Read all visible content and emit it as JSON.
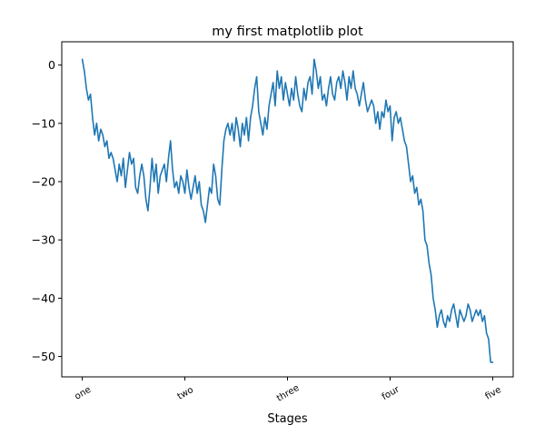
{
  "chart_data": {
    "type": "line",
    "title": "my first matplotlib plot",
    "xlabel": "Stages",
    "ylabel": "",
    "xlim": [
      -50,
      1050
    ],
    "ylim": [
      -53.5,
      4
    ],
    "xticks": [
      {
        "value": 0,
        "label": "one"
      },
      {
        "value": 250,
        "label": "two"
      },
      {
        "value": 500,
        "label": "three"
      },
      {
        "value": 750,
        "label": "four"
      },
      {
        "value": 1000,
        "label": "five"
      }
    ],
    "yticks": [
      {
        "value": 0,
        "label": "0"
      },
      {
        "value": -10,
        "label": "−10"
      },
      {
        "value": -20,
        "label": "−20"
      },
      {
        "value": -30,
        "label": "−30"
      },
      {
        "value": -40,
        "label": "−40"
      },
      {
        "value": -50,
        "label": "−50"
      }
    ],
    "grid": false,
    "series": [
      {
        "color": "#1f77b4",
        "x": [
          0,
          5,
          10,
          15,
          20,
          25,
          30,
          35,
          40,
          45,
          50,
          55,
          60,
          65,
          70,
          75,
          80,
          85,
          90,
          95,
          100,
          105,
          110,
          115,
          120,
          125,
          130,
          135,
          140,
          145,
          150,
          155,
          160,
          165,
          170,
          175,
          180,
          185,
          190,
          195,
          200,
          205,
          210,
          215,
          220,
          225,
          230,
          235,
          240,
          245,
          250,
          255,
          260,
          265,
          270,
          275,
          280,
          285,
          290,
          295,
          300,
          305,
          310,
          315,
          320,
          325,
          330,
          335,
          340,
          345,
          350,
          355,
          360,
          365,
          370,
          375,
          380,
          385,
          390,
          395,
          400,
          405,
          410,
          415,
          420,
          425,
          430,
          435,
          440,
          445,
          450,
          455,
          460,
          465,
          470,
          475,
          480,
          485,
          490,
          495,
          500,
          505,
          510,
          515,
          520,
          525,
          530,
          535,
          540,
          545,
          550,
          555,
          560,
          565,
          570,
          575,
          580,
          585,
          590,
          595,
          600,
          605,
          610,
          615,
          620,
          625,
          630,
          635,
          640,
          645,
          650,
          655,
          660,
          665,
          670,
          675,
          680,
          685,
          690,
          695,
          700,
          705,
          710,
          715,
          720,
          725,
          730,
          735,
          740,
          745,
          750,
          755,
          760,
          765,
          770,
          775,
          780,
          785,
          790,
          795,
          800,
          805,
          810,
          815,
          820,
          825,
          830,
          835,
          840,
          845,
          850,
          855,
          860,
          865,
          870,
          875,
          880,
          885,
          890,
          895,
          900,
          905,
          910,
          915,
          920,
          925,
          930,
          935,
          940,
          945,
          950,
          955,
          960,
          965,
          970,
          975,
          980,
          985,
          990,
          995,
          1000
        ],
        "y": [
          1,
          -1,
          -4,
          -6,
          -5,
          -9,
          -12,
          -10,
          -13,
          -11,
          -12,
          -14,
          -13,
          -16,
          -15,
          -16,
          -18,
          -20,
          -17,
          -19,
          -16,
          -21,
          -18,
          -15,
          -17,
          -16,
          -21,
          -22,
          -19,
          -17,
          -19,
          -23,
          -25,
          -21,
          -16,
          -20,
          -17,
          -22,
          -19,
          -18,
          -17,
          -20,
          -16,
          -13,
          -18,
          -21,
          -20,
          -22,
          -19,
          -20,
          -22,
          -18,
          -21,
          -23,
          -21,
          -19,
          -22,
          -20,
          -24,
          -25,
          -27,
          -24,
          -21,
          -22,
          -17,
          -19,
          -23,
          -24,
          -18,
          -13,
          -11,
          -10,
          -12,
          -10,
          -13,
          -9,
          -11,
          -14,
          -10,
          -12,
          -9,
          -13,
          -9,
          -7,
          -4,
          -2,
          -8,
          -10,
          -12,
          -9,
          -11,
          -7,
          -5,
          -3,
          -7,
          -1,
          -4,
          -2,
          -6,
          -3,
          -5,
          -7,
          -4,
          -6,
          -2,
          -5,
          -7,
          -8,
          -4,
          -6,
          -3,
          -2,
          -5,
          1,
          -1,
          -4,
          -2,
          -6,
          -5,
          -7,
          -4,
          -2,
          -5,
          -6,
          -3,
          -2,
          -4,
          -1,
          -3,
          -6,
          -2,
          -4,
          -1,
          -4,
          -5,
          -7,
          -5,
          -3,
          -6,
          -8,
          -7,
          -6,
          -7,
          -10,
          -8,
          -11,
          -8,
          -9,
          -6,
          -8,
          -7,
          -13,
          -9,
          -8,
          -10,
          -9,
          -11,
          -13,
          -14,
          -17,
          -20,
          -19,
          -22,
          -21,
          -24,
          -23,
          -25,
          -30,
          -31,
          -34,
          -36,
          -40,
          -42,
          -45,
          -43,
          -42,
          -44,
          -45,
          -43,
          -44,
          -42,
          -41,
          -43,
          -45,
          -42,
          -43,
          -44,
          -43,
          -41,
          -42,
          -44,
          -43,
          -42,
          -43,
          -42,
          -44,
          -43,
          -46,
          -47,
          -51,
          -51
        ]
      }
    ]
  }
}
